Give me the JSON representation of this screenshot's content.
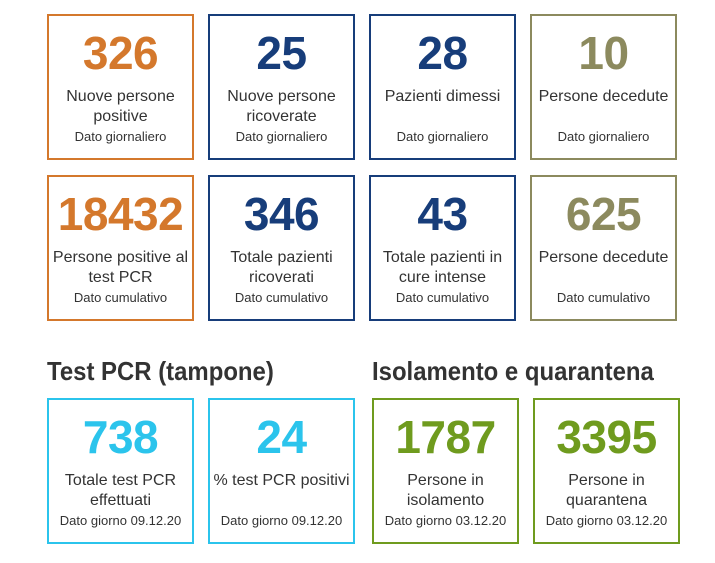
{
  "colors": {
    "orange": "#D4782C",
    "navy": "#173D7A",
    "olive": "#8C8A5E",
    "cyan": "#2BC4EC",
    "green": "#6F9B1E"
  },
  "daily": [
    {
      "value": "326",
      "label": "Nuove persone positive",
      "sub": "Dato giornaliero",
      "color": "orange"
    },
    {
      "value": "25",
      "label": "Nuove persone ricoverate",
      "sub": "Dato giornaliero",
      "color": "navy"
    },
    {
      "value": "28",
      "label": "Pazienti dimessi",
      "sub": "Dato giornaliero",
      "color": "navy"
    },
    {
      "value": "10",
      "label": "Persone decedute",
      "sub": "Dato giornaliero",
      "color": "olive"
    }
  ],
  "cumulative": [
    {
      "value": "18432",
      "label": "Persone positive al test PCR",
      "sub": "Dato cumulativo",
      "color": "orange"
    },
    {
      "value": "346",
      "label": "Totale pazienti ricoverati",
      "sub": "Dato cumulativo",
      "color": "navy"
    },
    {
      "value": "43",
      "label": "Totale pazienti in cure intense",
      "sub": "Dato cumulativo",
      "color": "navy"
    },
    {
      "value": "625",
      "label": "Persone decedute",
      "sub": "Dato cumulativo",
      "color": "olive"
    }
  ],
  "test_section": {
    "title": "Test PCR (tampone)",
    "cards": [
      {
        "value": "738",
        "label": "Totale test PCR effettuati",
        "sub": "Dato giorno 09.12.20",
        "color": "cyan"
      },
      {
        "value": "24",
        "label": "% test PCR positivi",
        "sub": "Dato giorno 09.12.20",
        "color": "cyan"
      }
    ]
  },
  "isolation_section": {
    "title": "Isolamento e quarantena",
    "cards": [
      {
        "value": "1787",
        "label": "Persone in isolamento",
        "sub": "Dato giorno 03.12.20",
        "color": "green"
      },
      {
        "value": "3395",
        "label": "Persone in quarantena",
        "sub": "Dato giorno 03.12.20",
        "color": "green"
      }
    ]
  }
}
